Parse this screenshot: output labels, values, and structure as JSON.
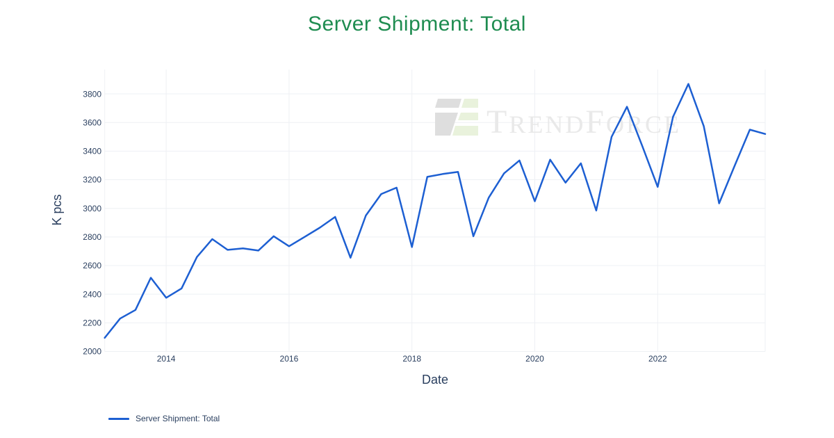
{
  "title": {
    "text": "Server Shipment: Total",
    "color": "#1e8c50"
  },
  "watermark": {
    "brand_t": "T",
    "brand_rend": "REND",
    "brand_f": "F",
    "brand_orce": "ORCE",
    "text_color": "#e9e9e9",
    "logo_gray": "#dedede",
    "logo_green": "#e9f2dc"
  },
  "legend": {
    "items": [
      {
        "label": "Server Shipment: Total",
        "color": "#1d5fd2"
      }
    ]
  },
  "chart_data": {
    "type": "line",
    "title": "Server Shipment: Total",
    "xlabel": "Date",
    "ylabel": "K pcs",
    "grid": true,
    "legend_position": "bottom-left",
    "line_color": "#1d5fd2",
    "grid_color": "#eef0f4",
    "tick_color": "#2a3f5f",
    "ylim": [
      2000,
      3975
    ],
    "y_ticks": [
      2000,
      2200,
      2400,
      2600,
      2800,
      3000,
      3200,
      3400,
      3600,
      3800
    ],
    "x_ticks": [
      {
        "label": "2014",
        "index": 4
      },
      {
        "label": "2016",
        "index": 12
      },
      {
        "label": "2018",
        "index": 20
      },
      {
        "label": "2020",
        "index": 28
      },
      {
        "label": "2022",
        "index": 36
      }
    ],
    "x": [
      "2013-Q1",
      "2013-Q2",
      "2013-Q3",
      "2013-Q4",
      "2014-Q1",
      "2014-Q2",
      "2014-Q3",
      "2014-Q4",
      "2015-Q1",
      "2015-Q2",
      "2015-Q3",
      "2015-Q4",
      "2016-Q1",
      "2016-Q2",
      "2016-Q3",
      "2016-Q4",
      "2017-Q1",
      "2017-Q2",
      "2017-Q3",
      "2017-Q4",
      "2018-Q1",
      "2018-Q2",
      "2018-Q3",
      "2018-Q4",
      "2019-Q1",
      "2019-Q2",
      "2019-Q3",
      "2019-Q4",
      "2020-Q1",
      "2020-Q2",
      "2020-Q3",
      "2020-Q4",
      "2021-Q1",
      "2021-Q2",
      "2021-Q3",
      "2021-Q4",
      "2022-Q1",
      "2022-Q2",
      "2022-Q3",
      "2022-Q4",
      "2023-Q1",
      "2023-Q2",
      "2023-Q3",
      "2023-Q4"
    ],
    "series": [
      {
        "name": "Server Shipment: Total",
        "color": "#1d5fd2",
        "values": [
          2095,
          2230,
          2290,
          2515,
          2375,
          2440,
          2660,
          2785,
          2710,
          2720,
          2705,
          2805,
          2735,
          2800,
          2865,
          2940,
          2655,
          2950,
          3100,
          3145,
          2730,
          3220,
          3240,
          3255,
          2805,
          3075,
          3245,
          3335,
          3050,
          3340,
          3180,
          3315,
          2985,
          3500,
          3710,
          3435,
          3150,
          3640,
          3870,
          3575,
          3035,
          3295,
          3550,
          3520
        ]
      }
    ]
  }
}
